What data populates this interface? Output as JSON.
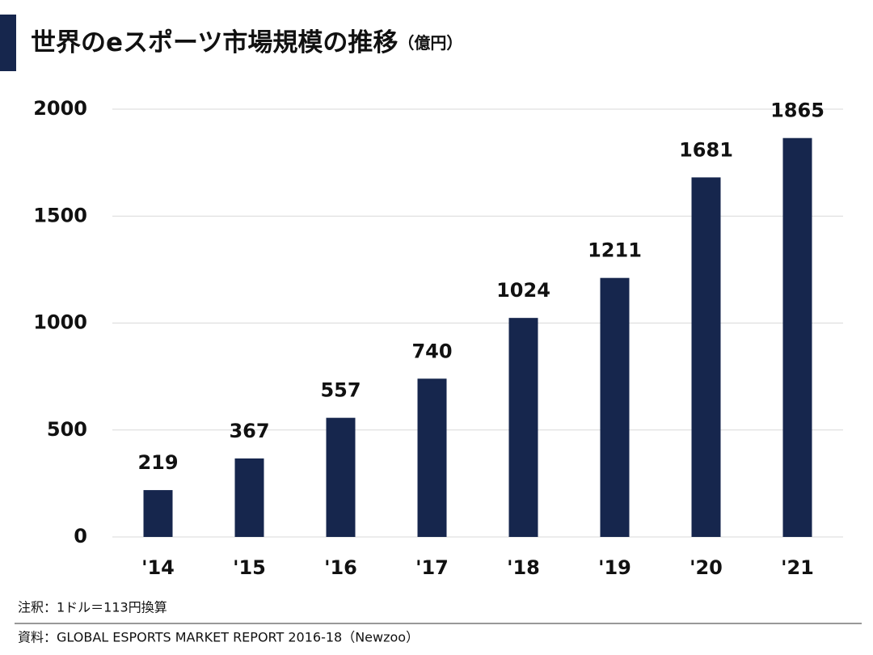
{
  "chart_data": {
    "type": "bar",
    "title": "世界のeスポーツ市場規模の推移",
    "subtitle": "（億円）",
    "categories": [
      "'14",
      "'15",
      "'16",
      "'17",
      "'18",
      "'19",
      "'20",
      "'21"
    ],
    "values": [
      219,
      367,
      557,
      740,
      1024,
      1211,
      1681,
      1865
    ],
    "color": "#16264d",
    "ylim": [
      0,
      2000
    ],
    "yticks": [
      0,
      500,
      1000,
      1500,
      2000
    ],
    "grid": true,
    "notes": [
      "注釈：1ドル＝113円換算",
      "資料：GLOBAL ESPORTS MARKET REPORT 2016-18（Newzoo）"
    ]
  }
}
